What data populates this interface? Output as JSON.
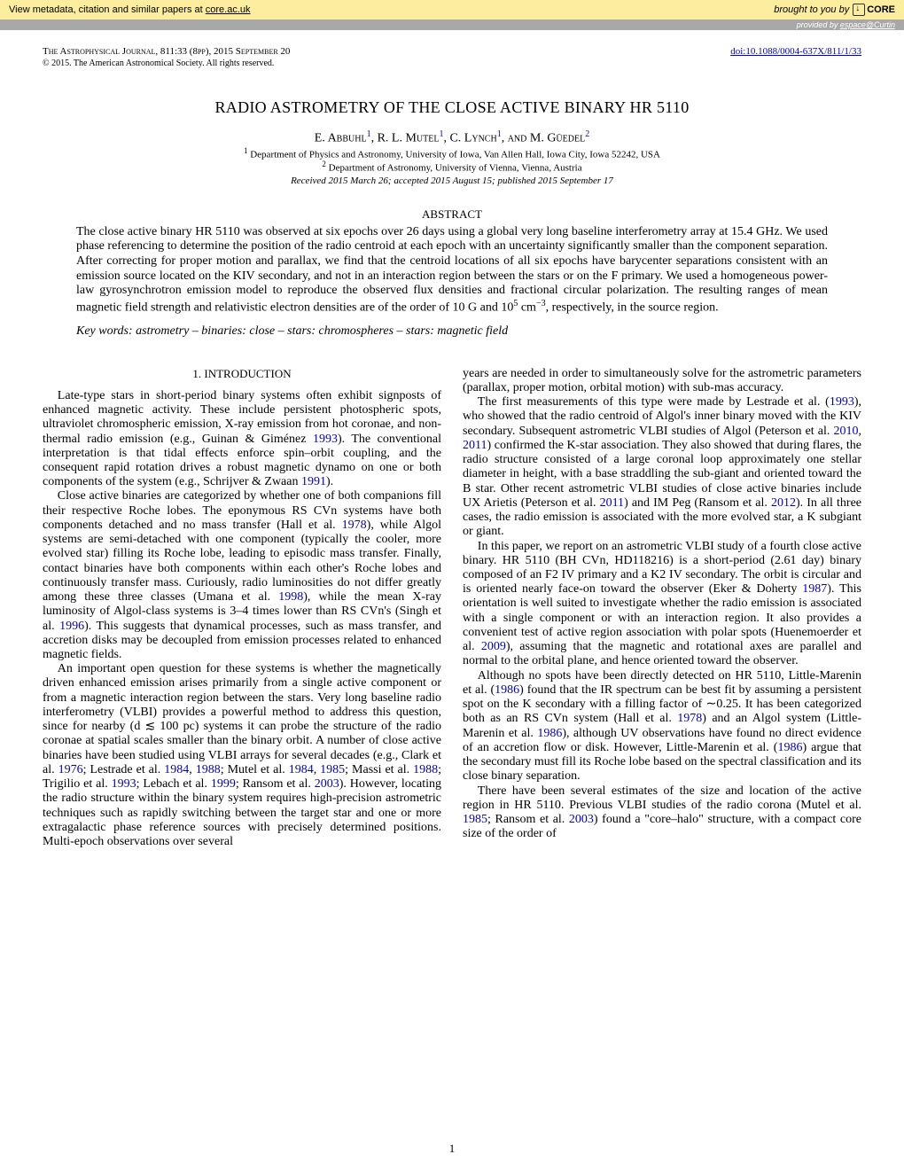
{
  "banner": {
    "left_prefix": "View metadata, citation and similar papers at ",
    "left_link": "core.ac.uk",
    "right_prefix": "brought to you by ",
    "core_text": "CORE",
    "espace_prefix": "provided by ",
    "espace_link": "espace@Curtin"
  },
  "header": {
    "journal": "The Astrophysical Journal, 811:33 (8pp), 2015 September 20",
    "doi": "doi:10.1088/0004-637X/811/1/33",
    "copyright": "© 2015. The American Astronomical Society. All rights reserved."
  },
  "title": "RADIO ASTROMETRY OF THE CLOSE ACTIVE BINARY HR 5110",
  "authors": {
    "a1": "E. Abbuhl",
    "s1": "1",
    "a2": ", R. L. Mutel",
    "s2": "1",
    "a3": ", C. Lynch",
    "s3": "1",
    "a4": ", and M. Güedel",
    "s4": "2"
  },
  "affil1_sup": "1",
  "affil1": " Department of Physics and Astronomy, University of Iowa, Van Allen Hall, Iowa City, Iowa 52242, USA",
  "affil2_sup": "2",
  "affil2": " Department of Astronomy, University of Vienna, Vienna, Austria",
  "dates": "Received 2015 March 26; accepted 2015 August 15; published 2015 September 17",
  "abstract_heading": "ABSTRACT",
  "abstract": {
    "t1": "The close active binary HR 5110 was observed at six epochs over 26 days using a global very long baseline interferometry array at 15.4 GHz. We used phase referencing to determine the position of the radio centroid at each epoch with an uncertainty significantly smaller than the component separation. After correcting for proper motion and parallax, we find that the centroid locations of all six epochs have barycenter separations consistent with an emission source located on the KIV secondary, and not in an interaction region between the stars or on the F primary. We used a homogeneous power-law gyrosynchrotron emission model to reproduce the observed flux densities and fractional circular polarization. The resulting ranges of mean magnetic field strength and relativistic electron densities are of the order of 10 G and 10",
    "sup1": "5",
    "t2": " cm",
    "sup2": "−3",
    "t3": ", respectively, in the source region."
  },
  "keywords": {
    "label": "Key words:",
    "text": " astrometry – binaries: close – stars: chromospheres – stars: magnetic field"
  },
  "section1_heading": "1. INTRODUCTION",
  "col1": {
    "p1a": "Late-type stars in short-period binary systems often exhibit signposts of enhanced magnetic activity. These include persistent photospheric spots, ultraviolet chromospheric emission, X-ray emission from hot coronae, and non-thermal radio emission (e.g., Guinan & Giménez ",
    "c1": "1993",
    "p1b": "). The conventional interpretation is that tidal effects enforce spin–orbit coupling, and the consequent rapid rotation drives a robust magnetic dynamo on one or both components of the system (e.g., Schrijver & Zwaan ",
    "c2": "1991",
    "p1c": ").",
    "p2a": "Close active binaries are categorized by whether one of both companions fill their respective Roche lobes. The eponymous RS CVn systems have both components detached and no mass transfer (Hall et al. ",
    "c3": "1978",
    "p2b": "), while Algol systems are semi-detached with one component (typically the cooler, more evolved star) filling its Roche lobe, leading to episodic mass transfer. Finally, contact binaries have both components within each other's Roche lobes and continuously transfer mass. Curiously, radio luminosities do not differ greatly among these three classes (Umana et al. ",
    "c4": "1998",
    "p2c": "), while the mean X-ray luminosity of Algol-class systems is 3–4 times lower than RS CVn's (Singh et al. ",
    "c5": "1996",
    "p2d": "). This suggests that dynamical processes, such as mass transfer, and accretion disks may be decoupled from emission processes related to enhanced magnetic fields.",
    "p3a": "An important open question for these systems is whether the magnetically driven enhanced emission arises primarily from a single active component or from a magnetic interaction region between the stars. Very long baseline radio interferometry (VLBI) provides a powerful method to address this question, since for nearby (d ≲ 100 pc) systems it can probe the structure of the radio coronae at spatial scales smaller than the binary orbit. A number of close active binaries have been studied using VLBI arrays for several decades (e.g., Clark et al. ",
    "c6": "1976",
    "p3b": "; Lestrade et al. ",
    "c7": "1984",
    "p3c": ", ",
    "c8": "1988",
    "p3d": "; Mutel et al. ",
    "c9": "1984",
    "p3e": ", ",
    "c10": "1985",
    "p3f": "; Massi et al. ",
    "c11": "1988",
    "p3g": "; Trigilio et al. ",
    "c12": "1993",
    "p3h": "; Lebach et al. ",
    "c13": "1999",
    "p3i": "; Ransom et al. ",
    "c14": "2003",
    "p3j": "). However, locating the radio structure within the binary system requires high-precision astrometric techniques such as rapidly switching between the target star and one or more extragalactic phase reference sources with precisely determined positions. Multi-epoch observations over several"
  },
  "col2": {
    "p1": "years are needed in order to simultaneously solve for the astrometric parameters (parallax, proper motion, orbital motion) with sub-mas accuracy.",
    "p2a": "The first measurements of this type were made by Lestrade et al. (",
    "c1": "1993",
    "p2b": "), who showed that the radio centroid of Algol's inner binary moved with the KIV secondary. Subsequent astrometric VLBI studies of Algol (Peterson et al. ",
    "c2": "2010",
    "p2c": ", ",
    "c3": "2011",
    "p2d": ") confirmed the K-star association. They also showed that during flares, the radio structure consisted of a large coronal loop approximately one stellar diameter in height, with a base straddling the sub-giant and oriented toward the B star. Other recent astrometric VLBI studies of close active binaries include UX Arietis (Peterson et al. ",
    "c4": "2011",
    "p2e": ") and IM Peg (Ransom et al. ",
    "c5": "2012",
    "p2f": "). In all three cases, the radio emission is associated with the more evolved star, a K subgiant or giant.",
    "p3a": "In this paper, we report on an astrometric VLBI study of a fourth close active binary. HR 5110 (BH CVn, HD118216) is a short-period (2.61 day) binary composed of an F2 IV primary and a K2 IV secondary. The orbit is circular and is oriented nearly face-on toward the observer (Eker & Doherty ",
    "c6": "1987",
    "p3b": "). This orientation is well suited to investigate whether the radio emission is associated with a single component or with an interaction region. It also provides a convenient test of active region association with polar spots (Huenemoerder et al. ",
    "c7": "2009",
    "p3c": "), assuming that the magnetic and rotational axes are parallel and normal to the orbital plane, and hence oriented toward the observer.",
    "p4a": "Although no spots have been directly detected on HR 5110, Little-Marenin et al. (",
    "c8": "1986",
    "p4b": ") found that the IR spectrum can be best fit by assuming a persistent spot on the K secondary with a filling factor of ∼0.25. It has been categorized both as an RS CVn system (Hall et al. ",
    "c9": "1978",
    "p4c": ") and an Algol system (Little-Marenin et al. ",
    "c10": "1986",
    "p4d": "), although UV observations have found no direct evidence of an accretion flow or disk. However, Little-Marenin et al. (",
    "c11": "1986",
    "p4e": ") argue that the secondary must fill its Roche lobe based on the spectral classification and its close binary separation.",
    "p5a": "There have been several estimates of the size and location of the active region in HR 5110. Previous VLBI studies of the radio corona (Mutel et al. ",
    "c12": "1985",
    "p5b": "; Ransom et al. ",
    "c13": "2003",
    "p5c": ") found a \"core–halo\" structure, with a compact core size of the order of"
  },
  "pagenum": "1"
}
